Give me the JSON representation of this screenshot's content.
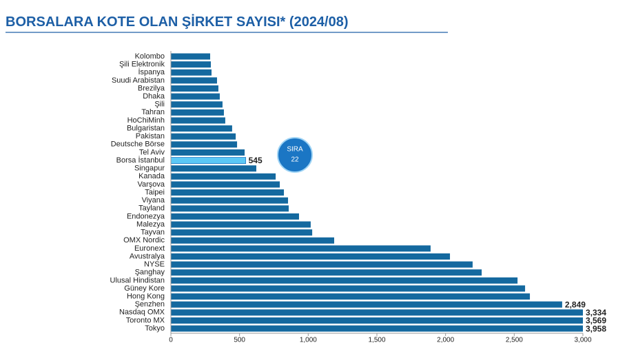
{
  "chart_data": {
    "type": "barh",
    "title": "BORSALARA KOTE OLAN ŞİRKET SAYISI*",
    "subtitle": "(2024/08)",
    "annotation": {
      "title": "SIRA",
      "value": "22"
    },
    "categories": [
      "Kolombo",
      "Şili Elektronik",
      "İspanya",
      "Suudi Arabistan",
      "Brezilya",
      "Dhaka",
      "Şili",
      "Tahran",
      "HoChiMinh",
      "Bulgaristan",
      "Pakistan",
      "Deutsche Börse",
      "Tel Aviv",
      "Borsa İstanbul",
      "Singapur",
      "Kanada",
      "Varşova",
      "Taipei",
      "Viyana",
      "Tayland",
      "Endonezya",
      "Malezya",
      "Tayvan",
      "OMX Nordic",
      "Euronext",
      "Avustralya",
      "NYSE",
      "Şanghay",
      "Ulusal Hindistan",
      "Güney Kore",
      "Hong Kong",
      "Şenzhen",
      "Nasdaq OMX",
      "Toronto MX",
      "Tokyo"
    ],
    "values": [
      286,
      291,
      296,
      336,
      346,
      356,
      376,
      386,
      396,
      446,
      472,
      482,
      537,
      545,
      622,
      763,
      793,
      823,
      853,
      858,
      933,
      1018,
      1029,
      1189,
      1891,
      2032,
      2197,
      2263,
      2524,
      2579,
      2614,
      2849,
      3334,
      3569,
      3958
    ],
    "value_labels": [
      null,
      null,
      null,
      null,
      null,
      null,
      null,
      null,
      null,
      null,
      null,
      null,
      null,
      "545",
      null,
      null,
      null,
      null,
      null,
      null,
      null,
      null,
      null,
      null,
      null,
      null,
      null,
      null,
      null,
      null,
      null,
      "2,849",
      "3,334",
      "3,569",
      "3,958"
    ],
    "colors": [
      "#14699f",
      "#14699f",
      "#14699f",
      "#14699f",
      "#14699f",
      "#14699f",
      "#14699f",
      "#14699f",
      "#14699f",
      "#14699f",
      "#14699f",
      "#14699f",
      "#14699f",
      "#5bc8f5",
      "#14699f",
      "#14699f",
      "#14699f",
      "#14699f",
      "#14699f",
      "#14699f",
      "#14699f",
      "#14699f",
      "#14699f",
      "#14699f",
      "#14699f",
      "#14699f",
      "#14699f",
      "#14699f",
      "#14699f",
      "#14699f",
      "#14699f",
      "#14699f",
      "#14699f",
      "#14699f",
      "#14699f"
    ],
    "xlim": [
      0,
      3000
    ],
    "xticks": [
      0,
      500,
      {
        "value": 1000,
        "label": "1,000"
      },
      {
        "value": 1500,
        "label": "1,500"
      },
      {
        "value": 2000,
        "label": "2,000"
      },
      {
        "value": 2500,
        "label": "2,500"
      },
      {
        "value": 3000,
        "label": "3,000"
      }
    ]
  }
}
